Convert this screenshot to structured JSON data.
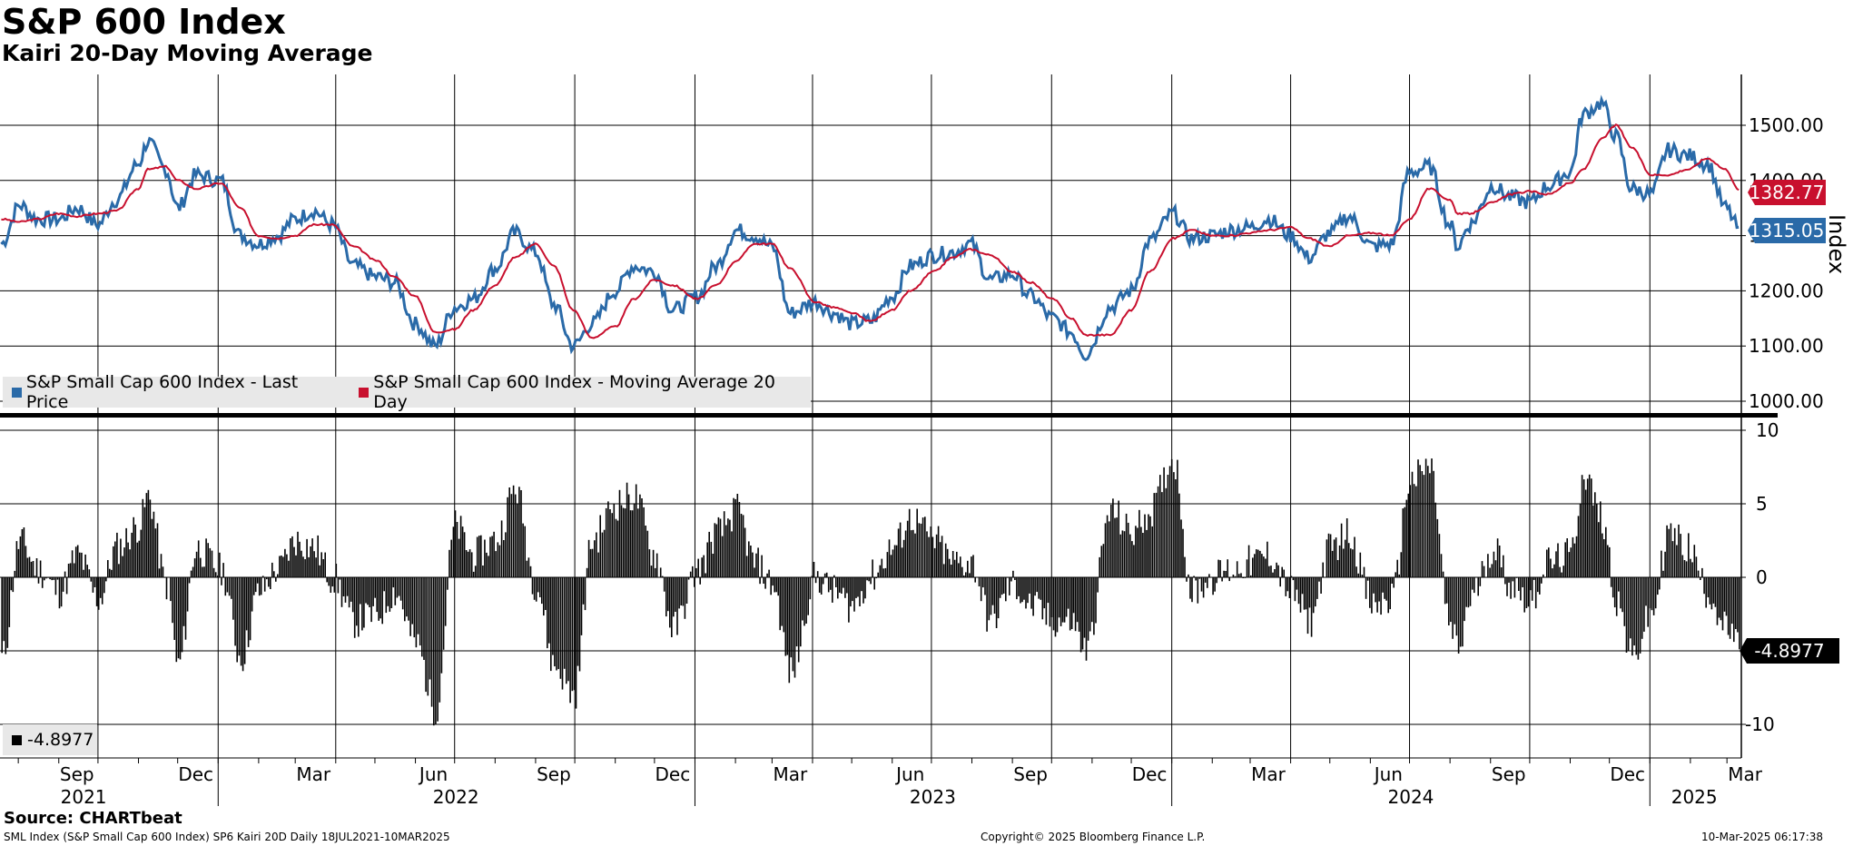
{
  "title": "S&P 600 Index",
  "subtitle": "Kairi 20-Day Moving Average",
  "source": "Source: CHARTbeat",
  "footer": {
    "left": "SML Index (S&P Small Cap 600 Index) SP6 Kairi 20D  Daily 18JUL2021-10MAR2025",
    "center": "Copyright© 2025 Bloomberg Finance L.P.",
    "right": "10-Mar-2025 06:17:38"
  },
  "colors": {
    "price": "#2a6aa8",
    "moving_average": "#c8102e",
    "kairi": "#000000",
    "last_price_tag": "#2a6aa8",
    "ma_tag": "#c8102e"
  },
  "chart_data": [
    {
      "type": "line",
      "name": "upper",
      "ylabel": "Index",
      "ylim": [
        1000,
        1600
      ],
      "yticks": [
        "1500.00",
        "1400.00",
        "1300.00",
        "1200.00",
        "1100.00",
        "1000.00"
      ],
      "grid": true,
      "legend_position": "bottom-left",
      "x": [
        "2021-07-19",
        "2021-08-02",
        "2021-08-16",
        "2021-09-01",
        "2021-09-15",
        "2021-10-01",
        "2021-10-15",
        "2021-11-01",
        "2021-11-08",
        "2021-11-22",
        "2021-12-01",
        "2021-12-15",
        "2022-01-03",
        "2022-01-18",
        "2022-02-01",
        "2022-02-15",
        "2022-03-01",
        "2022-03-15",
        "2022-03-29",
        "2022-04-15",
        "2022-05-02",
        "2022-05-16",
        "2022-06-01",
        "2022-06-16",
        "2022-07-01",
        "2022-07-15",
        "2022-08-01",
        "2022-08-16",
        "2022-09-01",
        "2022-09-15",
        "2022-09-30",
        "2022-10-14",
        "2022-11-01",
        "2022-11-15",
        "2022-12-01",
        "2022-12-15",
        "2023-01-03",
        "2023-01-17",
        "2023-02-02",
        "2023-02-15",
        "2023-03-01",
        "2023-03-15",
        "2023-04-03",
        "2023-04-17",
        "2023-05-01",
        "2023-05-15",
        "2023-06-01",
        "2023-06-15",
        "2023-07-03",
        "2023-07-17",
        "2023-07-31",
        "2023-08-15",
        "2023-09-01",
        "2023-09-15",
        "2023-10-02",
        "2023-10-16",
        "2023-10-27",
        "2023-11-15",
        "2023-12-01",
        "2023-12-15",
        "2024-01-02",
        "2024-01-16",
        "2024-02-01",
        "2024-02-15",
        "2024-03-01",
        "2024-03-15",
        "2024-04-01",
        "2024-04-15",
        "2024-05-01",
        "2024-05-15",
        "2024-06-03",
        "2024-06-17",
        "2024-07-01",
        "2024-07-16",
        "2024-08-01",
        "2024-08-07",
        "2024-08-16",
        "2024-09-03",
        "2024-09-16",
        "2024-10-01",
        "2024-10-15",
        "2024-11-01",
        "2024-11-11",
        "2024-11-25",
        "2024-12-06",
        "2024-12-18",
        "2025-01-02",
        "2025-01-15",
        "2025-01-30",
        "2025-02-14",
        "2025-02-28",
        "2025-03-10"
      ],
      "series": [
        {
          "name": "S&P Small Cap 600 Index - Last Price",
          "values": [
            1285,
            1355,
            1330,
            1330,
            1350,
            1320,
            1365,
            1430,
            1470,
            1420,
            1350,
            1410,
            1400,
            1300,
            1285,
            1300,
            1330,
            1345,
            1320,
            1245,
            1225,
            1215,
            1140,
            1100,
            1170,
            1185,
            1240,
            1305,
            1270,
            1175,
            1100,
            1140,
            1200,
            1245,
            1235,
            1165,
            1190,
            1245,
            1310,
            1300,
            1280,
            1160,
            1180,
            1160,
            1140,
            1145,
            1190,
            1245,
            1265,
            1270,
            1285,
            1220,
            1230,
            1190,
            1150,
            1125,
            1085,
            1170,
            1200,
            1290,
            1340,
            1295,
            1300,
            1310,
            1315,
            1330,
            1300,
            1260,
            1305,
            1335,
            1280,
            1285,
            1415,
            1425,
            1320,
            1280,
            1320,
            1390,
            1370,
            1360,
            1390,
            1415,
            1520,
            1540,
            1480,
            1385,
            1375,
            1455,
            1445,
            1430,
            1350,
            1315.05
          ]
        },
        {
          "name": "S&P Small Cap 600 Index - Moving Average 20 Day",
          "values": [
            1330,
            1325,
            1330,
            1340,
            1335,
            1340,
            1345,
            1385,
            1420,
            1425,
            1400,
            1385,
            1395,
            1350,
            1300,
            1295,
            1300,
            1320,
            1320,
            1280,
            1255,
            1225,
            1190,
            1125,
            1130,
            1165,
            1210,
            1260,
            1285,
            1245,
            1165,
            1115,
            1135,
            1185,
            1220,
            1210,
            1185,
            1210,
            1255,
            1285,
            1285,
            1240,
            1180,
            1170,
            1160,
            1145,
            1165,
            1200,
            1235,
            1260,
            1275,
            1265,
            1235,
            1215,
            1185,
            1150,
            1120,
            1120,
            1165,
            1235,
            1295,
            1310,
            1300,
            1300,
            1305,
            1310,
            1315,
            1295,
            1280,
            1300,
            1305,
            1300,
            1330,
            1385,
            1365,
            1340,
            1340,
            1360,
            1375,
            1380,
            1375,
            1395,
            1420,
            1475,
            1500,
            1460,
            1410,
            1410,
            1420,
            1440,
            1420,
            1382.77
          ]
        }
      ],
      "last_value_labels": [
        "1382.77",
        "1315.05"
      ]
    },
    {
      "type": "bar",
      "name": "lower",
      "series_name": "SP6 Kairi 20D",
      "legend_position": "bottom-left",
      "ylim": [
        -12.5,
        10.5
      ],
      "yticks": [
        "10",
        "5",
        "0",
        "-10"
      ],
      "grid": true,
      "x": [
        "2021-07-19",
        "2021-08-02",
        "2021-08-16",
        "2021-09-01",
        "2021-09-15",
        "2021-10-01",
        "2021-10-15",
        "2021-11-01",
        "2021-11-08",
        "2021-11-22",
        "2021-12-01",
        "2021-12-15",
        "2022-01-03",
        "2022-01-18",
        "2022-02-01",
        "2022-02-15",
        "2022-03-01",
        "2022-03-15",
        "2022-03-29",
        "2022-04-15",
        "2022-05-02",
        "2022-05-16",
        "2022-06-01",
        "2022-06-16",
        "2022-07-01",
        "2022-07-15",
        "2022-08-01",
        "2022-08-16",
        "2022-09-01",
        "2022-09-15",
        "2022-09-30",
        "2022-10-14",
        "2022-11-01",
        "2022-11-15",
        "2022-12-01",
        "2022-12-15",
        "2023-01-03",
        "2023-01-17",
        "2023-02-02",
        "2023-02-15",
        "2023-03-01",
        "2023-03-15",
        "2023-04-03",
        "2023-04-17",
        "2023-05-01",
        "2023-05-15",
        "2023-06-01",
        "2023-06-15",
        "2023-07-03",
        "2023-07-17",
        "2023-07-31",
        "2023-08-15",
        "2023-09-01",
        "2023-09-15",
        "2023-10-02",
        "2023-10-16",
        "2023-10-27",
        "2023-11-15",
        "2023-12-01",
        "2023-12-15",
        "2024-01-02",
        "2024-01-16",
        "2024-02-01",
        "2024-02-15",
        "2024-03-01",
        "2024-03-15",
        "2024-04-01",
        "2024-04-15",
        "2024-05-01",
        "2024-05-15",
        "2024-06-03",
        "2024-06-17",
        "2024-07-01",
        "2024-07-16",
        "2024-08-01",
        "2024-08-07",
        "2024-08-16",
        "2024-09-03",
        "2024-09-16",
        "2024-10-01",
        "2024-10-15",
        "2024-11-01",
        "2024-11-11",
        "2024-11-25",
        "2024-12-06",
        "2024-12-18",
        "2025-01-02",
        "2025-01-15",
        "2025-01-30",
        "2025-02-14",
        "2025-02-28",
        "2025-03-10"
      ],
      "values": [
        -5.5,
        2.5,
        0.5,
        -1,
        1.5,
        -1.5,
        2,
        3.5,
        5.5,
        -0.5,
        -6,
        2,
        0.5,
        -5.5,
        -1,
        0.5,
        2.5,
        2,
        0,
        -3,
        -2.5,
        -1,
        -4.5,
        -9,
        3.5,
        1.5,
        2.5,
        6,
        -0.5,
        -6,
        -8,
        2.5,
        5,
        5.5,
        1.5,
        -3.5,
        0.5,
        3,
        4.5,
        1,
        -0.5,
        -6.5,
        0,
        -1,
        -2,
        0,
        2,
        4,
        2.5,
        1,
        1,
        -3,
        -0.5,
        -2,
        -3,
        -3,
        -5,
        4.5,
        3,
        4.5,
        8,
        -1,
        0,
        0.5,
        1,
        1.5,
        -1,
        -3,
        2,
        3,
        -2,
        -1.5,
        6.5,
        7.5,
        -3.5,
        -5,
        -1.5,
        2,
        -0.5,
        -1.5,
        1,
        1.5,
        7,
        4,
        -1.5,
        -5.5,
        -2.5,
        3,
        2,
        -1,
        -3.5,
        -4.8977
      ],
      "last_value_label": "-4.8977",
      "legend_label": "-4.8977"
    }
  ],
  "x_axis": {
    "month_labels": [
      "Sep",
      "Dec",
      "Mar",
      "Jun",
      "Sep",
      "Dec",
      "Mar",
      "Jun",
      "Sep",
      "Dec",
      "Mar",
      "Jun",
      "Sep",
      "Dec",
      "Mar"
    ],
    "year_labels": [
      "2021",
      "2022",
      "2023",
      "2024",
      "2025"
    ]
  }
}
